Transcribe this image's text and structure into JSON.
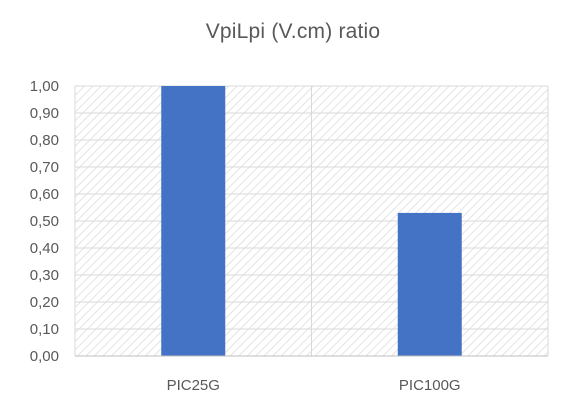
{
  "chart_data": {
    "type": "bar",
    "title": "VpiLpi (V.cm) ratio",
    "categories": [
      "PIC25G",
      "PIC100G"
    ],
    "values": [
      1.0,
      0.53
    ],
    "ylim": [
      0,
      1
    ],
    "yticks": [
      "0,00",
      "0,10",
      "0,20",
      "0,30",
      "0,40",
      "0,50",
      "0,60",
      "0,70",
      "0,80",
      "0,90",
      "1,00"
    ],
    "xlabel": "",
    "ylabel": "",
    "grid": true,
    "bar_color": "#4472c4",
    "grid_color": "#d9d9d9",
    "legend": "none"
  }
}
